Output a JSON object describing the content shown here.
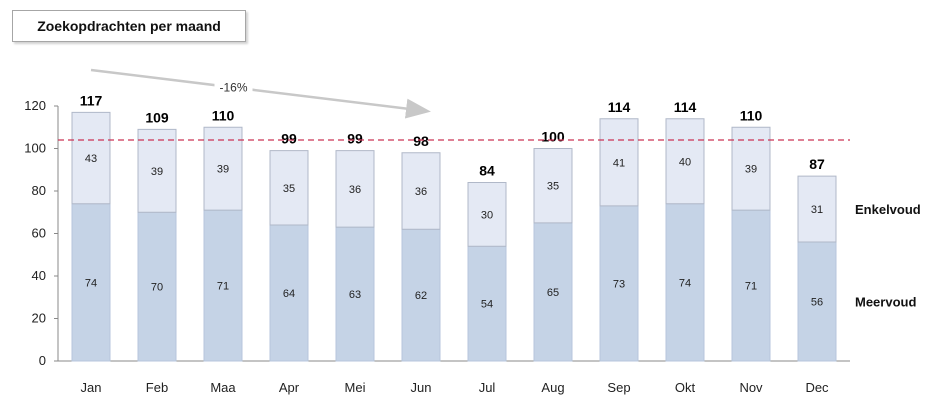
{
  "title": "Zoekopdrachten per maand",
  "chart_data": {
    "type": "bar",
    "stacked": true,
    "categories": [
      "Jan",
      "Feb",
      "Maa",
      "Apr",
      "Mei",
      "Jun",
      "Jul",
      "Aug",
      "Sep",
      "Okt",
      "Nov",
      "Dec"
    ],
    "series": [
      {
        "name": "Meervoud",
        "values": [
          74,
          70,
          71,
          64,
          63,
          62,
          54,
          65,
          73,
          74,
          71,
          56
        ],
        "color": "#c5d3e6"
      },
      {
        "name": "Enkelvoud",
        "values": [
          43,
          39,
          39,
          35,
          36,
          36,
          30,
          35,
          41,
          40,
          39,
          31
        ],
        "color": "#e4e9f4"
      }
    ],
    "totals": [
      117,
      109,
      110,
      99,
      99,
      98,
      84,
      100,
      114,
      114,
      110,
      87
    ],
    "ylim": [
      0,
      120
    ],
    "yticks": [
      0,
      20,
      40,
      60,
      80,
      100,
      120
    ],
    "reference_line": {
      "value": 104,
      "color": "#cc3355",
      "style": "dashed"
    },
    "trend_annotation": {
      "label": "-16%",
      "from": "Jan",
      "to": "Jun"
    },
    "grid": false,
    "legend": "right"
  }
}
